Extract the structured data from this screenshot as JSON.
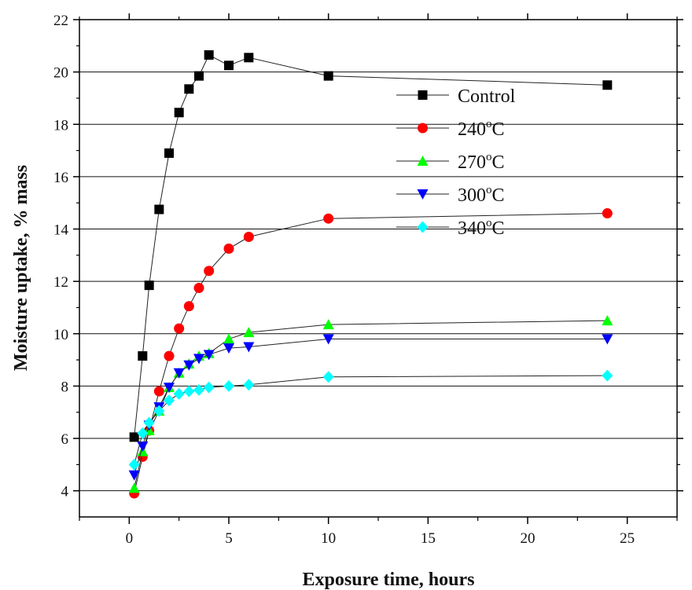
{
  "chart_data": {
    "type": "scatter",
    "xlabel": "Exposure time, hours",
    "ylabel": "Moisture uptake, % mass",
    "xlim": [
      -2.5,
      27.5
    ],
    "ylim": [
      3,
      22
    ],
    "xticks": [
      "0",
      "5",
      "10",
      "15",
      "20",
      "25"
    ],
    "yticks": [
      "4",
      "6",
      "8",
      "10",
      "12",
      "14",
      "16",
      "18",
      "20",
      "22"
    ],
    "grid": "horizontal",
    "legend": "top-right",
    "series": [
      {
        "name": "Control",
        "name_sup": "",
        "marker": "square",
        "color": "#000000",
        "x": [
          0.25,
          0.67,
          1,
          1.5,
          2,
          2.5,
          3,
          3.5,
          4,
          5,
          6,
          10,
          24
        ],
        "y": [
          6.05,
          9.15,
          11.85,
          14.75,
          16.9,
          18.45,
          19.35,
          19.85,
          20.65,
          20.25,
          20.55,
          19.85,
          19.5
        ]
      },
      {
        "name": "240",
        "name_sup": "o",
        "name_suffix": "C",
        "marker": "circle",
        "color": "#ff0000",
        "x": [
          0.25,
          0.67,
          1,
          1.5,
          2,
          2.5,
          3,
          3.5,
          4,
          5,
          6,
          10,
          24
        ],
        "y": [
          3.9,
          5.3,
          6.3,
          7.8,
          9.15,
          10.2,
          11.05,
          11.75,
          12.4,
          13.25,
          13.7,
          14.4,
          14.6
        ]
      },
      {
        "name": "270",
        "name_sup": "o",
        "name_suffix": "C",
        "marker": "triangle-up",
        "color": "#00ff00",
        "x": [
          0.25,
          0.67,
          1,
          1.5,
          2,
          2.5,
          3,
          3.5,
          4,
          5,
          6,
          10,
          24
        ],
        "y": [
          4.1,
          5.5,
          6.3,
          7.05,
          7.95,
          8.5,
          8.85,
          9.15,
          9.25,
          9.8,
          10.05,
          10.35,
          10.5
        ]
      },
      {
        "name": "300",
        "name_sup": "o",
        "name_suffix": "C",
        "marker": "triangle-down",
        "color": "#0000ff",
        "x": [
          0.25,
          0.67,
          1,
          1.5,
          2,
          2.5,
          3,
          3.5,
          4,
          5,
          6,
          10,
          24
        ],
        "y": [
          4.6,
          5.7,
          6.5,
          7.2,
          7.95,
          8.5,
          8.8,
          9.05,
          9.2,
          9.45,
          9.5,
          9.8,
          9.8
        ]
      },
      {
        "name": "340",
        "name_sup": "o",
        "name_suffix": "C",
        "marker": "diamond",
        "color": "#00ffff",
        "x": [
          0.25,
          0.67,
          1,
          1.5,
          2,
          2.5,
          3,
          3.5,
          4,
          5,
          6,
          10,
          24
        ],
        "y": [
          5.0,
          6.2,
          6.6,
          7.05,
          7.45,
          7.7,
          7.8,
          7.85,
          7.95,
          8.0,
          8.05,
          8.35,
          8.4
        ]
      }
    ]
  }
}
